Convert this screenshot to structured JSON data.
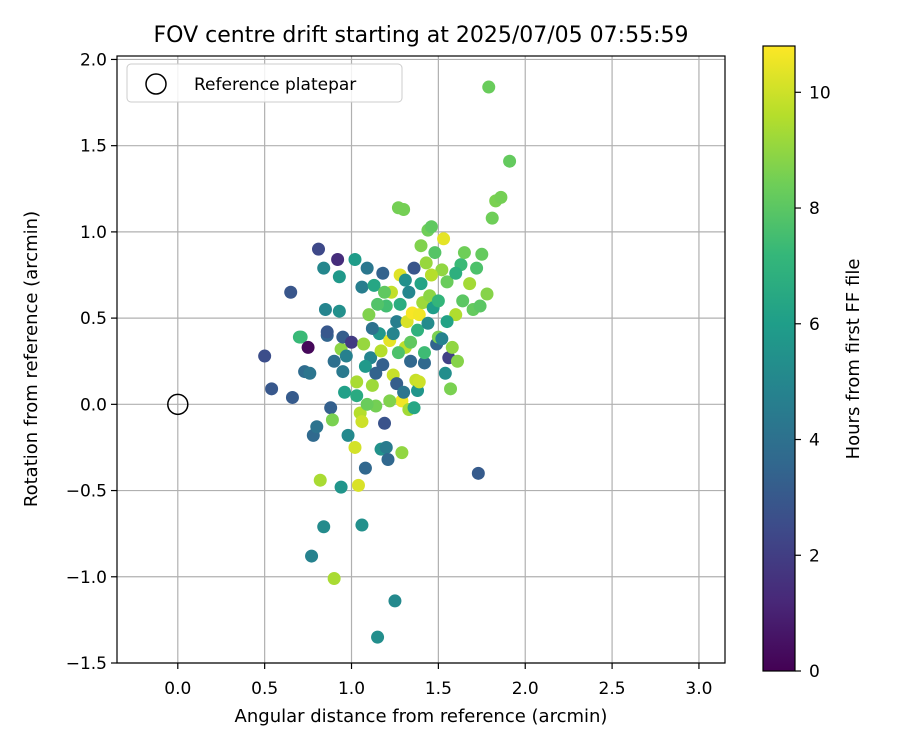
{
  "chart_data": {
    "type": "scatter",
    "title": "FOV centre drift starting at 2025/07/05 07:55:59",
    "xlabel": "Angular distance from reference (arcmin)",
    "ylabel": "Rotation from reference (arcmin)",
    "xlim": [
      -0.35,
      3.15
    ],
    "ylim": [
      -1.5,
      2.02
    ],
    "xticks": [
      0.0,
      0.5,
      1.0,
      1.5,
      2.0,
      2.5,
      3.0
    ],
    "xtick_labels": [
      "0.0",
      "0.5",
      "1.0",
      "1.5",
      "2.0",
      "2.5",
      "3.0"
    ],
    "yticks": [
      -1.5,
      -1.0,
      -0.5,
      0.0,
      0.5,
      1.0,
      1.5,
      2.0
    ],
    "ytick_labels": [
      "−1.5",
      "−1.0",
      "−0.5",
      "0.0",
      "0.5",
      "1.0",
      "1.5",
      "2.0"
    ],
    "grid": true,
    "legend": {
      "placement": "upper-left",
      "entries": [
        "Reference platepar"
      ]
    },
    "reference_point": {
      "x": 0.0,
      "y": 0.0
    },
    "colorbar": {
      "label": "Hours from first FF file",
      "colormap": "viridis",
      "range": [
        0,
        10.8
      ],
      "ticks": [
        0,
        2,
        4,
        6,
        8,
        10
      ],
      "tick_labels": [
        "0",
        "2",
        "4",
        "6",
        "8",
        "10"
      ],
      "stops": [
        "#440154",
        "#482878",
        "#3e4989",
        "#31688e",
        "#26828e",
        "#1f9e89",
        "#35b779",
        "#6ece58",
        "#b5de2b",
        "#fde725"
      ]
    },
    "points": [
      {
        "x": 0.5,
        "y": 0.28,
        "h": 2.6
      },
      {
        "x": 0.54,
        "y": 0.09,
        "h": 3.0
      },
      {
        "x": 0.65,
        "y": 0.65,
        "h": 2.9
      },
      {
        "x": 0.66,
        "y": 0.04,
        "h": 3.1
      },
      {
        "x": 0.7,
        "y": 0.39,
        "h": 7.2
      },
      {
        "x": 0.71,
        "y": 0.39,
        "h": 7.3
      },
      {
        "x": 0.73,
        "y": 0.19,
        "h": 3.8
      },
      {
        "x": 0.75,
        "y": 0.33,
        "h": 0.2
      },
      {
        "x": 0.76,
        "y": 0.18,
        "h": 4.2
      },
      {
        "x": 0.77,
        "y": -0.88,
        "h": 4.8
      },
      {
        "x": 0.78,
        "y": -0.18,
        "h": 3.7
      },
      {
        "x": 0.8,
        "y": -0.13,
        "h": 4.1
      },
      {
        "x": 0.81,
        "y": 0.9,
        "h": 2.4
      },
      {
        "x": 0.82,
        "y": -0.44,
        "h": 9.4
      },
      {
        "x": 0.84,
        "y": 0.79,
        "h": 5.0
      },
      {
        "x": 0.84,
        "y": -0.71,
        "h": 5.2
      },
      {
        "x": 0.85,
        "y": 0.55,
        "h": 4.9
      },
      {
        "x": 0.86,
        "y": 0.4,
        "h": 3.5
      },
      {
        "x": 0.86,
        "y": 0.42,
        "h": 3.0
      },
      {
        "x": 0.88,
        "y": -0.02,
        "h": 3.3
      },
      {
        "x": 0.89,
        "y": -0.09,
        "h": 8.6
      },
      {
        "x": 0.9,
        "y": 0.25,
        "h": 3.9
      },
      {
        "x": 0.9,
        "y": -1.01,
        "h": 9.4
      },
      {
        "x": 0.92,
        "y": 0.84,
        "h": 1.4
      },
      {
        "x": 0.93,
        "y": 0.74,
        "h": 5.8
      },
      {
        "x": 0.93,
        "y": 0.54,
        "h": 5.4
      },
      {
        "x": 0.94,
        "y": 0.32,
        "h": 8.9
      },
      {
        "x": 0.94,
        "y": -0.48,
        "h": 5.6
      },
      {
        "x": 0.95,
        "y": 0.39,
        "h": 3.2
      },
      {
        "x": 0.95,
        "y": 0.19,
        "h": 4.4
      },
      {
        "x": 0.96,
        "y": 0.07,
        "h": 6.1
      },
      {
        "x": 0.97,
        "y": 0.28,
        "h": 4.7
      },
      {
        "x": 0.98,
        "y": -0.18,
        "h": 5.1
      },
      {
        "x": 1.0,
        "y": 0.36,
        "h": 1.9
      },
      {
        "x": 1.02,
        "y": 0.84,
        "h": 5.9
      },
      {
        "x": 1.02,
        "y": -0.25,
        "h": 10.1
      },
      {
        "x": 1.03,
        "y": 0.13,
        "h": 9.4
      },
      {
        "x": 1.04,
        "y": -0.47,
        "h": 10.2
      },
      {
        "x": 1.05,
        "y": -0.05,
        "h": 9.6
      },
      {
        "x": 1.06,
        "y": 0.68,
        "h": 4.6
      },
      {
        "x": 1.06,
        "y": -0.1,
        "h": 10.0
      },
      {
        "x": 1.06,
        "y": -0.7,
        "h": 5.4
      },
      {
        "x": 1.07,
        "y": 0.35,
        "h": 9.1
      },
      {
        "x": 1.08,
        "y": -0.37,
        "h": 3.6
      },
      {
        "x": 1.09,
        "y": 0.79,
        "h": 4.3
      },
      {
        "x": 1.1,
        "y": 0.52,
        "h": 8.7
      },
      {
        "x": 1.11,
        "y": 0.27,
        "h": 4.9
      },
      {
        "x": 1.12,
        "y": 0.11,
        "h": 9.2
      },
      {
        "x": 1.13,
        "y": 0.69,
        "h": 6.4
      },
      {
        "x": 1.14,
        "y": -0.01,
        "h": 8.5
      },
      {
        "x": 1.15,
        "y": -1.35,
        "h": 5.3
      },
      {
        "x": 1.16,
        "y": 0.41,
        "h": 5.7
      },
      {
        "x": 1.17,
        "y": -0.26,
        "h": 5.5
      },
      {
        "x": 1.18,
        "y": 0.76,
        "h": 3.4
      },
      {
        "x": 1.18,
        "y": 0.23,
        "h": 3.3
      },
      {
        "x": 1.19,
        "y": -0.11,
        "h": 2.8
      },
      {
        "x": 1.2,
        "y": 0.57,
        "h": 7.5
      },
      {
        "x": 1.2,
        "y": -0.25,
        "h": 4.5
      },
      {
        "x": 1.21,
        "y": -0.32,
        "h": 3.6
      },
      {
        "x": 1.22,
        "y": 0.37,
        "h": 10.4
      },
      {
        "x": 1.23,
        "y": 0.65,
        "h": 9.8
      },
      {
        "x": 1.24,
        "y": 0.17,
        "h": 9.9
      },
      {
        "x": 1.25,
        "y": -1.14,
        "h": 5.1
      },
      {
        "x": 1.26,
        "y": 0.48,
        "h": 4.6
      },
      {
        "x": 1.27,
        "y": 1.14,
        "h": 8.5
      },
      {
        "x": 1.28,
        "y": 0.75,
        "h": 10.3
      },
      {
        "x": 1.29,
        "y": 0.02,
        "h": 10.6
      },
      {
        "x": 1.29,
        "y": -0.28,
        "h": 9.0
      },
      {
        "x": 1.3,
        "y": 1.13,
        "h": 8.5
      },
      {
        "x": 1.31,
        "y": 0.33,
        "h": 9.7
      },
      {
        "x": 1.32,
        "y": 0.48,
        "h": 10.2
      },
      {
        "x": 1.33,
        "y": -0.03,
        "h": 9.3
      },
      {
        "x": 1.34,
        "y": 0.25,
        "h": 3.6
      },
      {
        "x": 1.35,
        "y": 0.53,
        "h": 10.7
      },
      {
        "x": 1.36,
        "y": 0.79,
        "h": 2.9
      },
      {
        "x": 1.37,
        "y": 0.14,
        "h": 9.9
      },
      {
        "x": 1.38,
        "y": 0.43,
        "h": 6.9
      },
      {
        "x": 1.39,
        "y": 0.52,
        "h": 10.6
      },
      {
        "x": 1.4,
        "y": 0.92,
        "h": 8.7
      },
      {
        "x": 1.41,
        "y": 0.59,
        "h": 9.2
      },
      {
        "x": 1.42,
        "y": 0.24,
        "h": 3.7
      },
      {
        "x": 1.43,
        "y": 0.82,
        "h": 9.1
      },
      {
        "x": 1.44,
        "y": 1.01,
        "h": 8.4
      },
      {
        "x": 1.45,
        "y": 0.63,
        "h": 8.9
      },
      {
        "x": 1.46,
        "y": 1.03,
        "h": 8.1
      },
      {
        "x": 1.48,
        "y": 0.88,
        "h": 7.9
      },
      {
        "x": 1.49,
        "y": 0.35,
        "h": 3.5
      },
      {
        "x": 1.5,
        "y": 0.39,
        "h": 8.6
      },
      {
        "x": 1.52,
        "y": 0.78,
        "h": 9.0
      },
      {
        "x": 1.53,
        "y": 0.96,
        "h": 10.4
      },
      {
        "x": 1.54,
        "y": 0.18,
        "h": 5.3
      },
      {
        "x": 1.55,
        "y": 0.71,
        "h": 8.3
      },
      {
        "x": 1.56,
        "y": 0.27,
        "h": 2.1
      },
      {
        "x": 1.57,
        "y": 0.09,
        "h": 8.6
      },
      {
        "x": 1.58,
        "y": 0.33,
        "h": 9.0
      },
      {
        "x": 1.6,
        "y": 0.52,
        "h": 9.5
      },
      {
        "x": 1.61,
        "y": 0.25,
        "h": 8.8
      },
      {
        "x": 1.63,
        "y": 0.81,
        "h": 7.3
      },
      {
        "x": 1.64,
        "y": 0.6,
        "h": 8.0
      },
      {
        "x": 1.65,
        "y": 0.88,
        "h": 8.4
      },
      {
        "x": 1.68,
        "y": 0.7,
        "h": 9.3
      },
      {
        "x": 1.7,
        "y": 0.55,
        "h": 8.2
      },
      {
        "x": 1.72,
        "y": 0.79,
        "h": 7.7
      },
      {
        "x": 1.73,
        "y": -0.4,
        "h": 3.1
      },
      {
        "x": 1.74,
        "y": 0.57,
        "h": 8.0
      },
      {
        "x": 1.75,
        "y": 0.87,
        "h": 8.2
      },
      {
        "x": 1.78,
        "y": 0.64,
        "h": 8.8
      },
      {
        "x": 1.79,
        "y": 1.84,
        "h": 8.3
      },
      {
        "x": 1.81,
        "y": 1.08,
        "h": 8.4
      },
      {
        "x": 1.83,
        "y": 1.18,
        "h": 8.6
      },
      {
        "x": 1.86,
        "y": 1.2,
        "h": 8.5
      },
      {
        "x": 1.91,
        "y": 1.41,
        "h": 8.2
      },
      {
        "x": 1.26,
        "y": 0.12,
        "h": 3.2
      },
      {
        "x": 1.3,
        "y": 0.07,
        "h": 4.2
      },
      {
        "x": 1.33,
        "y": 0.65,
        "h": 5.0
      },
      {
        "x": 1.38,
        "y": 0.08,
        "h": 5.6
      },
      {
        "x": 1.4,
        "y": 0.7,
        "h": 6.3
      },
      {
        "x": 1.44,
        "y": 0.47,
        "h": 5.2
      },
      {
        "x": 1.47,
        "y": 0.56,
        "h": 6.0
      },
      {
        "x": 1.5,
        "y": 0.6,
        "h": 7.1
      },
      {
        "x": 1.52,
        "y": 0.38,
        "h": 4.8
      },
      {
        "x": 1.08,
        "y": 0.22,
        "h": 5.8
      },
      {
        "x": 1.12,
        "y": 0.44,
        "h": 4.0
      },
      {
        "x": 1.15,
        "y": 0.58,
        "h": 7.8
      },
      {
        "x": 1.17,
        "y": 0.31,
        "h": 9.6
      },
      {
        "x": 1.22,
        "y": 0.02,
        "h": 8.7
      },
      {
        "x": 1.24,
        "y": 0.41,
        "h": 4.9
      },
      {
        "x": 1.28,
        "y": 0.58,
        "h": 6.7
      },
      {
        "x": 1.34,
        "y": 0.36,
        "h": 8.1
      },
      {
        "x": 1.36,
        "y": -0.02,
        "h": 6.4
      },
      {
        "x": 1.39,
        "y": 0.13,
        "h": 10.0
      },
      {
        "x": 1.03,
        "y": 0.05,
        "h": 6.6
      },
      {
        "x": 1.09,
        "y": 0.0,
        "h": 8.3
      },
      {
        "x": 1.14,
        "y": 0.18,
        "h": 3.4
      },
      {
        "x": 1.19,
        "y": 0.65,
        "h": 8.1
      },
      {
        "x": 1.27,
        "y": 0.3,
        "h": 7.7
      },
      {
        "x": 1.31,
        "y": 0.72,
        "h": 5.4
      },
      {
        "x": 1.42,
        "y": 0.3,
        "h": 7.4
      },
      {
        "x": 1.46,
        "y": 0.75,
        "h": 9.6
      },
      {
        "x": 1.55,
        "y": 0.48,
        "h": 6.2
      },
      {
        "x": 1.6,
        "y": 0.76,
        "h": 6.8
      }
    ]
  }
}
